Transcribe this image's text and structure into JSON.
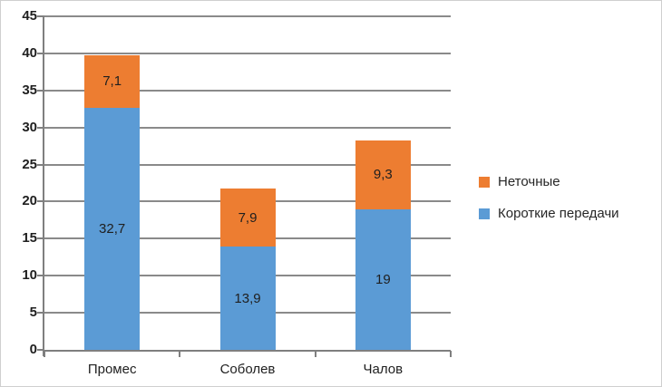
{
  "chart_data": {
    "type": "bar",
    "stacked": true,
    "title": "",
    "xlabel": "",
    "ylabel": "",
    "categories": [
      "Промес",
      "Соболев",
      "Чалов"
    ],
    "series": [
      {
        "name": "Короткие передачи",
        "color": "#5B9BD5",
        "values": [
          32.7,
          13.9,
          19
        ],
        "labels": [
          "32,7",
          "13,9",
          "19"
        ]
      },
      {
        "name": "Неточные",
        "color": "#ED7D31",
        "values": [
          7.1,
          7.9,
          9.3
        ],
        "labels": [
          "7,1",
          "7,9",
          "9,3"
        ]
      }
    ],
    "totals": [
      39.8,
      21.8,
      28.3
    ],
    "ylim": [
      0,
      45
    ],
    "ytick_step": 5,
    "ytick_labels": [
      "0",
      "5",
      "10",
      "15",
      "20",
      "25",
      "30",
      "35",
      "40",
      "45"
    ],
    "grid": true,
    "legend_position": "right",
    "legend": [
      {
        "label": "Неточные",
        "color": "#ED7D31"
      },
      {
        "label": "Короткие передачи",
        "color": "#5B9BD5"
      }
    ],
    "colors": {
      "gridline": "#8a8a8a",
      "axis": "#7f7f7f",
      "text": "#1f1f1f",
      "background": "#ffffff"
    }
  }
}
